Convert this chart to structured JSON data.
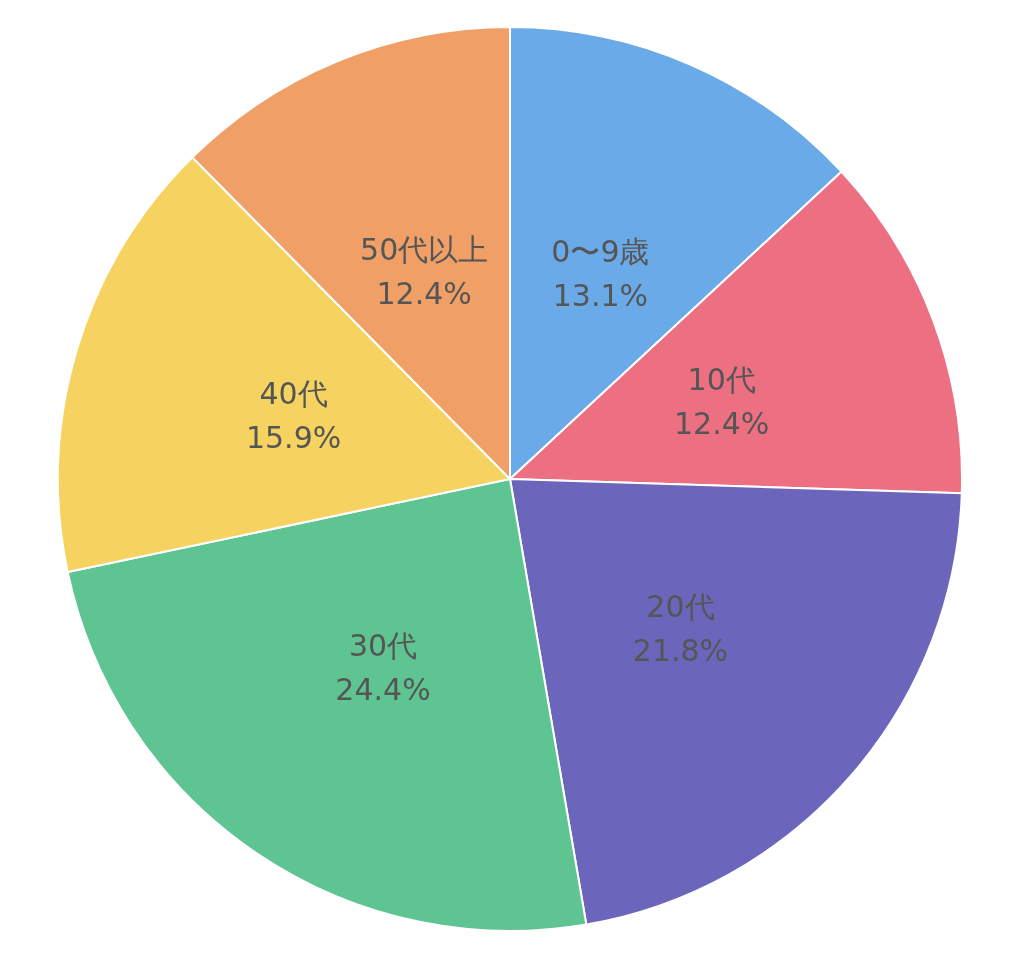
{
  "chart_data": {
    "type": "pie",
    "categories": [
      "0〜9歳",
      "10代",
      "20代",
      "30代",
      "40代",
      "50代以上"
    ],
    "values": [
      13.1,
      12.4,
      21.8,
      24.4,
      15.9,
      12.4
    ],
    "colors": [
      "#6aaae8",
      "#ec6f82",
      "#6b66bc",
      "#5ec592",
      "#f6d261",
      "#f0a066"
    ],
    "value_labels": [
      "13.1%",
      "12.4%",
      "21.8%",
      "24.4%",
      "15.9%",
      "12.4%"
    ]
  }
}
